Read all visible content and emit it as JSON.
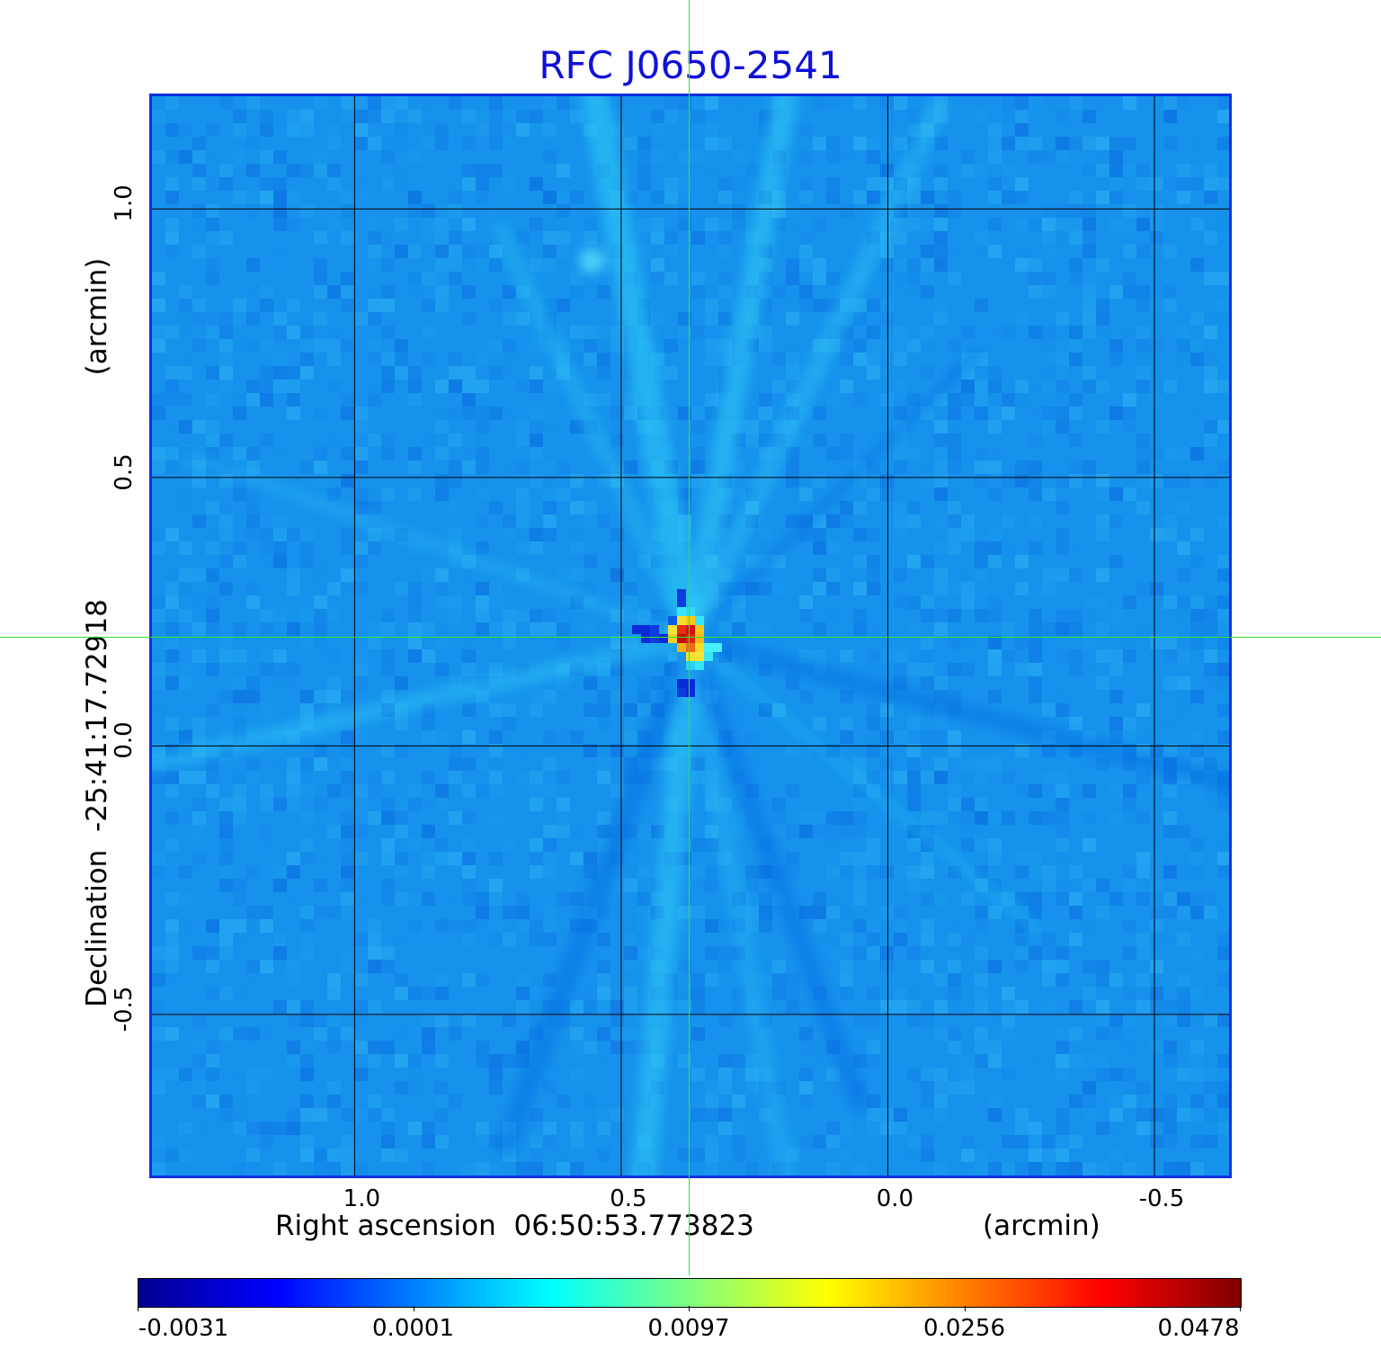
{
  "title": "RFC J0650-2541",
  "chart_data": {
    "type": "heatmap",
    "title": "RFC J0650-2541",
    "xlabel": "Right ascension  06:50:53.773823",
    "xunit": "(arcmin)",
    "ylabel": "Declination  -25:41:17.72918",
    "yunit": "(arcmin)",
    "x_ticks": [
      1.0,
      0.5,
      0.0,
      -0.5
    ],
    "x_tick_labels": [
      "1.0",
      "0.5",
      "0.0",
      "-0.5"
    ],
    "y_ticks": [
      1.0,
      0.5,
      0.0,
      -0.5
    ],
    "y_tick_labels": [
      "1.0",
      "0.5",
      "0.0",
      "-0.5"
    ],
    "xlim": [
      1.38,
      -0.64
    ],
    "ylim": [
      -0.8,
      1.21
    ],
    "grid": true,
    "source_position": [
      0.37,
      0.2
    ],
    "peak_value": 0.0478,
    "colorbar": {
      "tick_labels": [
        "-0.0031",
        "0.0001",
        "0.0097",
        "0.0256",
        "0.0478"
      ],
      "values": [
        -0.0031,
        0.0001,
        0.0097,
        0.0256,
        0.0478
      ],
      "colormap": "jet",
      "colors": [
        "#00008f",
        "#0000ff",
        "#0080ff",
        "#00ffff",
        "#80ff80",
        "#ffff00",
        "#ff8000",
        "#ff0000",
        "#800000"
      ]
    },
    "background_color": "#1692ec",
    "crosshair_color": "#2ee82e",
    "title_color": "#1010d8"
  }
}
